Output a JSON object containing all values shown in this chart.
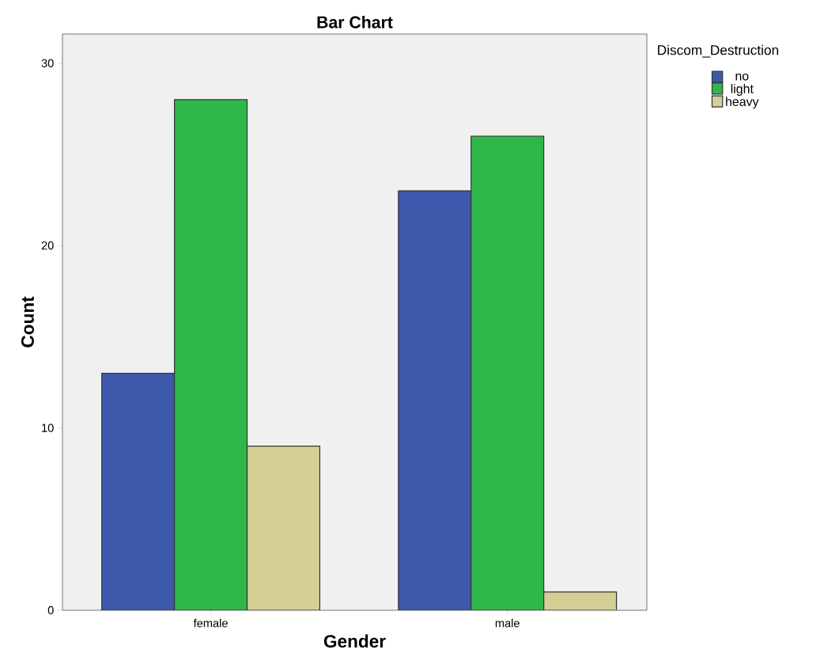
{
  "chart_data": {
    "type": "bar",
    "title": "Bar Chart",
    "xlabel": "Gender",
    "ylabel": "Count",
    "legend_title": "Discom_Destruction",
    "categories": [
      "female",
      "male"
    ],
    "series": [
      {
        "name": "no",
        "color": "#3e58ac",
        "values": [
          13,
          23
        ]
      },
      {
        "name": "light",
        "color": "#2fb84a",
        "values": [
          28,
          26
        ]
      },
      {
        "name": "heavy",
        "color": "#d4ce97",
        "values": [
          9,
          1
        ]
      }
    ],
    "ylim": [
      0,
      31.6
    ],
    "yticks": [
      0,
      10,
      20,
      30
    ],
    "grid": false,
    "legend": "top right"
  }
}
